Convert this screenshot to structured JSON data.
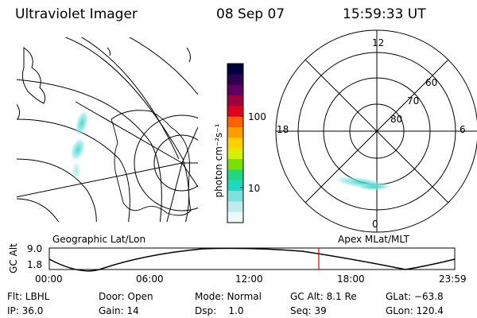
{
  "header": {
    "title": "Ultraviolet Imager",
    "date": "08 Sep 07",
    "time": "15:59:33 UT"
  },
  "geo_panel": {
    "caption": "Geographic Lat/Lon"
  },
  "polar_panel": {
    "caption": "Apex MLat/MLT",
    "hour_labels": {
      "top": "12",
      "left": "18",
      "right": "6",
      "bottom": "0"
    },
    "lat_labels": [
      "60",
      "70",
      "80"
    ]
  },
  "colorbar": {
    "unit_label": "photon cm⁻²s⁻¹",
    "tick_labels": [
      "100",
      "10"
    ],
    "colors": [
      "#000040",
      "#300050",
      "#600060",
      "#a0003c",
      "#e0001e",
      "#ff6000",
      "#ff9c00",
      "#ffd000",
      "#d8f000",
      "#78e000",
      "#20d880",
      "#20d8c0",
      "#80e0e0",
      "#c0ecec",
      "#eef8f8"
    ]
  },
  "orbit_plot": {
    "y_axis_label": "GC Alt",
    "y_ticks": [
      "9.0",
      "1.8"
    ],
    "x_ticks": [
      "00:00",
      "06:00",
      "12:00",
      "18:00",
      "23:59"
    ],
    "current_marker_color": "#e00000"
  },
  "status": {
    "filter": "Flt: LBHL",
    "ip": "IP: 36.0",
    "door": "Door: Open",
    "gain": "Gain: 14",
    "mode": "Mode: Normal",
    "dsp": "Dsp:    1.0",
    "gc_alt": "GC Alt: 8.1 Re",
    "seq": "Seq: 39",
    "glat": "GLat: −63.8",
    "glon": "GLon: 120.4"
  }
}
